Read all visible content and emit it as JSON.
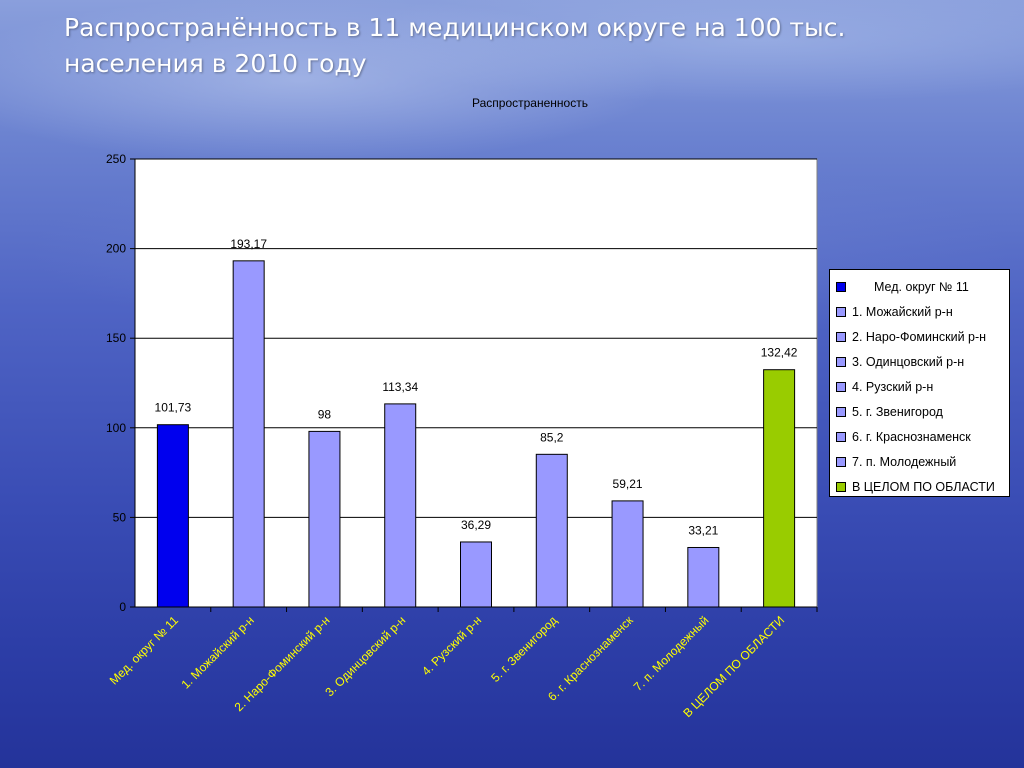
{
  "slide": {
    "title_line1": "Распространённость в 11 медицинском округе на 100 тыс.",
    "title_line2": "населения в 2010 году"
  },
  "chart_data": {
    "type": "bar",
    "title": "Распространенность",
    "categories": [
      "Мед. округ № 11",
      "1. Можайский р-н",
      "2. Наро-Фоминский р-н",
      "3. Одинцовский р-н",
      "4. Рузский р-н",
      "5. г. Звенигород",
      "6. г. Краснознаменск",
      "7. п. Молодежный",
      "В ЦЕЛОМ ПО ОБЛАСТИ"
    ],
    "values": [
      101.73,
      193.17,
      98,
      113.34,
      36.29,
      85.2,
      59.21,
      33.21,
      132.42
    ],
    "value_labels": [
      "101,73",
      "193,17",
      "98",
      "113,34",
      "36,29",
      "85,2",
      "59,21",
      "33,21",
      "132,42"
    ],
    "colors": [
      "#0000ee",
      "#9999ff",
      "#9999ff",
      "#9999ff",
      "#9999ff",
      "#9999ff",
      "#9999ff",
      "#9999ff",
      "#99cc00"
    ],
    "ylim": [
      0,
      250
    ],
    "yticks": [
      0,
      50,
      100,
      150,
      200,
      250
    ],
    "grid": true,
    "legend_position": "right"
  }
}
